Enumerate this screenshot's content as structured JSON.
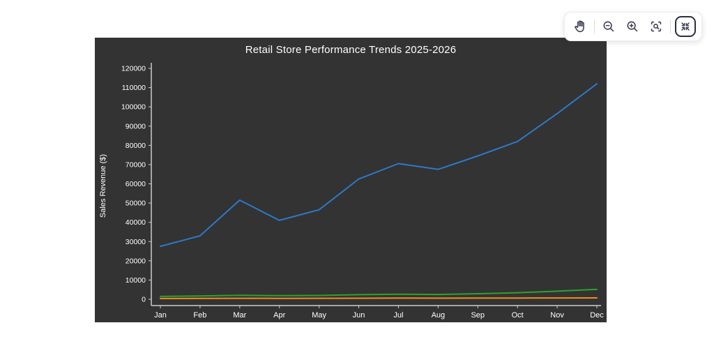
{
  "page": {
    "background": "#ffffff"
  },
  "toolbar": {
    "background": "#ffffff",
    "icon_color": "#3c3c55",
    "buttons": [
      {
        "id": "pan",
        "icon": "hand-icon",
        "active": false
      },
      {
        "id": "zoom-out",
        "icon": "zoom-out-icon",
        "active": false
      },
      {
        "id": "zoom-in",
        "icon": "zoom-in-icon",
        "active": false
      },
      {
        "id": "box-zoom",
        "icon": "box-zoom-icon",
        "active": false
      },
      {
        "id": "reset-view",
        "icon": "collapse-icon",
        "active": true
      }
    ]
  },
  "chart_data": {
    "type": "line",
    "title": "Retail Store Performance Trends 2025-2026",
    "xlabel": "",
    "ylabel": "Sales Revenue ($)",
    "categories": [
      "Jan",
      "Feb",
      "Mar",
      "Apr",
      "May",
      "Jun",
      "Jul",
      "Aug",
      "Sep",
      "Oct",
      "Nov",
      "Dec"
    ],
    "series": [
      {
        "name": "blue",
        "color": "#2d79c7",
        "values": [
          27500,
          33000,
          51500,
          41000,
          46500,
          62500,
          70500,
          67500,
          74500,
          82000,
          96500,
          112000
        ]
      },
      {
        "name": "green",
        "color": "#2ea12e",
        "values": [
          1500,
          1700,
          2100,
          1900,
          2000,
          2400,
          2600,
          2500,
          2900,
          3400,
          4200,
          5200
        ]
      },
      {
        "name": "orange",
        "color": "#ef8e1b",
        "values": [
          400,
          450,
          520,
          480,
          500,
          550,
          600,
          580,
          620,
          650,
          700,
          720
        ]
      }
    ],
    "ylim": [
      0,
      120000
    ],
    "ytick_step": 10000,
    "grid": false,
    "legend": "none",
    "background": "#333333",
    "text_color": "#ffffff",
    "spine_color": "#cccccc"
  }
}
